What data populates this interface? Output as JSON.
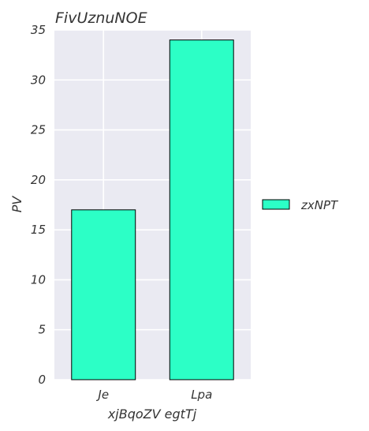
{
  "chart_data": {
    "type": "bar",
    "title": "FivUznuNOE",
    "xlabel": "xjBqoZV egtTj",
    "ylabel": "PV",
    "categories": [
      "Je",
      "Lpa"
    ],
    "series": [
      {
        "name": "zxNPT",
        "values": [
          17,
          34
        ]
      }
    ],
    "ylim": [
      0,
      35
    ],
    "yticks": [
      0,
      5,
      10,
      15,
      20,
      25,
      30,
      35
    ],
    "grid": true,
    "legend": "right",
    "colors": {
      "bar": "#2cffc6",
      "bar_edge": "#000000",
      "plot_bg": "#eaeaf2",
      "grid": "#ffffff"
    }
  }
}
